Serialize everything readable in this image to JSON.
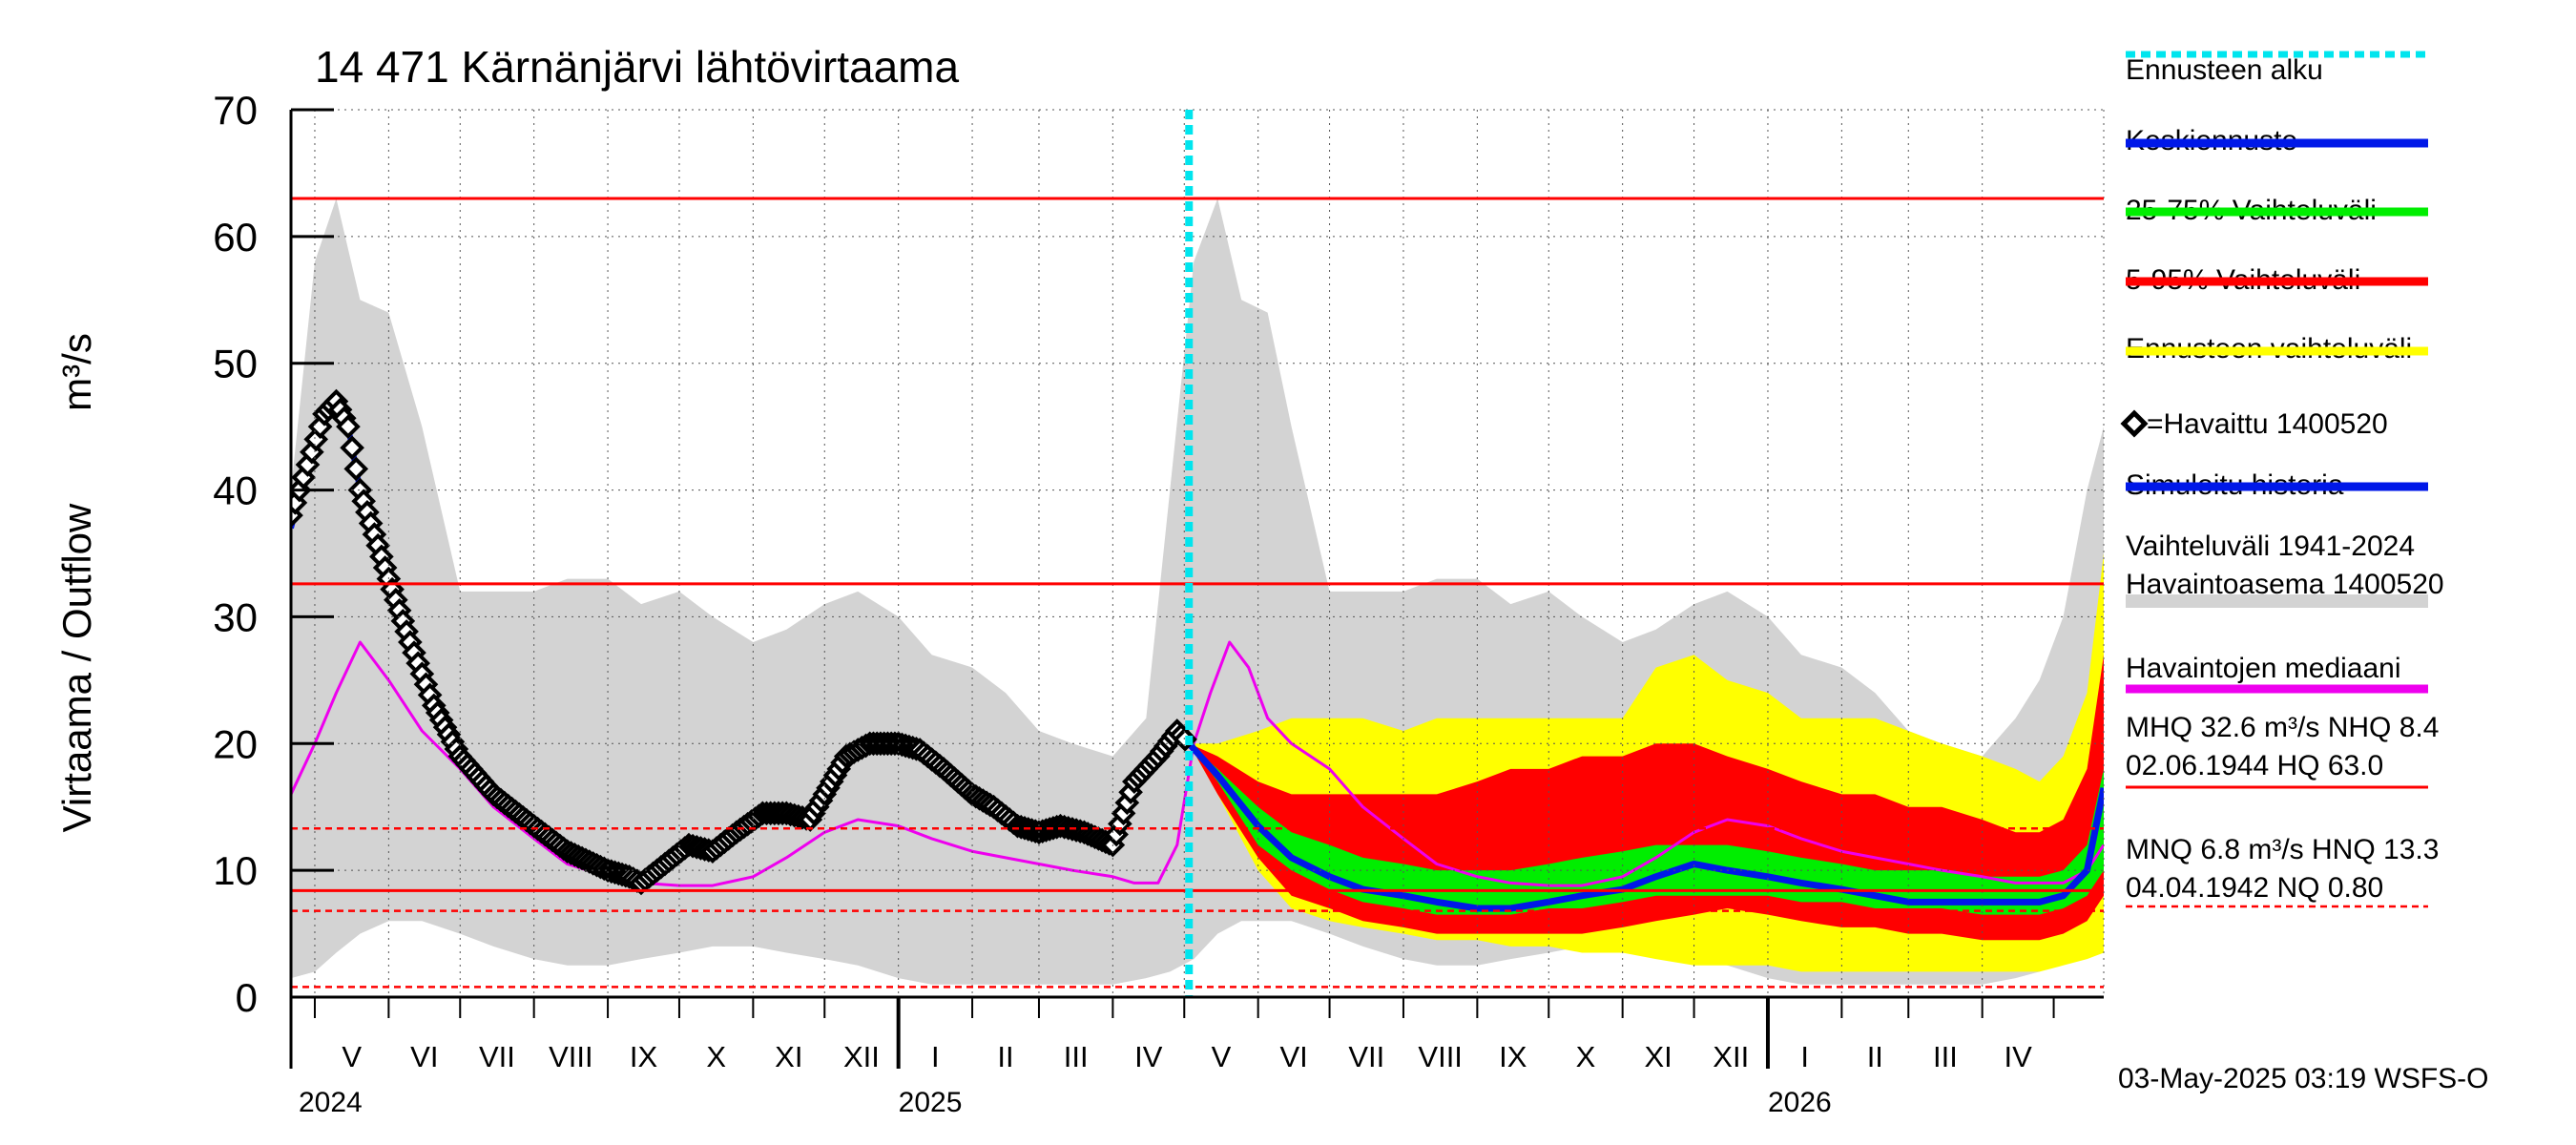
{
  "chart_data": {
    "type": "line",
    "title": "14 471 Kärnänjärvi lähtövirtaama",
    "ylabel": "Virtaama / Outflow",
    "yunit": "m³/s",
    "ylim": [
      0,
      70
    ],
    "yticks": [
      "0",
      "10",
      "20",
      "30",
      "40",
      "50",
      "60",
      "70"
    ],
    "xlim": [
      "2024-04-21",
      "2026-05-22"
    ],
    "forecast_start": "2025-05-03",
    "months": [
      {
        "label": "V",
        "start": "2024-05-01"
      },
      {
        "label": "VI",
        "start": "2024-06-01"
      },
      {
        "label": "VII",
        "start": "2024-07-01"
      },
      {
        "label": "VIII",
        "start": "2024-08-01"
      },
      {
        "label": "IX",
        "start": "2024-09-01"
      },
      {
        "label": "X",
        "start": "2024-10-01"
      },
      {
        "label": "XI",
        "start": "2024-11-01"
      },
      {
        "label": "XII",
        "start": "2024-12-01"
      },
      {
        "label": "I",
        "start": "2025-01-01"
      },
      {
        "label": "II",
        "start": "2025-02-01"
      },
      {
        "label": "III",
        "start": "2025-03-01"
      },
      {
        "label": "IV",
        "start": "2025-04-01"
      },
      {
        "label": "V",
        "start": "2025-05-01"
      },
      {
        "label": "VI",
        "start": "2025-06-01"
      },
      {
        "label": "VII",
        "start": "2025-07-01"
      },
      {
        "label": "VIII",
        "start": "2025-08-01"
      },
      {
        "label": "IX",
        "start": "2025-09-01"
      },
      {
        "label": "X",
        "start": "2025-10-01"
      },
      {
        "label": "XI",
        "start": "2025-11-01"
      },
      {
        "label": "XII",
        "start": "2025-12-01"
      },
      {
        "label": "I",
        "start": "2026-01-01"
      },
      {
        "label": "II",
        "start": "2026-02-01"
      },
      {
        "label": "III",
        "start": "2026-03-01"
      },
      {
        "label": "IV",
        "start": "2026-04-01"
      }
    ],
    "years": [
      {
        "label": "2024",
        "start": "2024-04-21"
      },
      {
        "label": "2025",
        "start": "2025-01-01"
      },
      {
        "label": "2026",
        "start": "2026-01-01"
      }
    ],
    "reference_lines": [
      {
        "name": "HQ",
        "value": 63.0,
        "style": "solid"
      },
      {
        "name": "MHQ",
        "value": 32.6,
        "style": "solid"
      },
      {
        "name": "HNQ",
        "value": 13.3,
        "style": "dashed"
      },
      {
        "name": "NHQ",
        "value": 8.4,
        "style": "solid"
      },
      {
        "name": "MNQ",
        "value": 6.8,
        "style": "dashed"
      },
      {
        "name": "NQ",
        "value": 0.8,
        "style": "dashed"
      }
    ],
    "historical_range": {
      "x": [
        "2024-04-21",
        "2024-05-01",
        "2024-05-10",
        "2024-05-20",
        "2024-06-01",
        "2024-06-15",
        "2024-07-01",
        "2024-07-15",
        "2024-08-01",
        "2024-08-15",
        "2024-09-01",
        "2024-09-15",
        "2024-10-01",
        "2024-10-15",
        "2024-11-01",
        "2024-11-15",
        "2024-12-01",
        "2024-12-15",
        "2025-01-01",
        "2025-01-15",
        "2025-02-01",
        "2025-02-15",
        "2025-03-01",
        "2025-03-15",
        "2025-04-01",
        "2025-04-15",
        "2025-04-25",
        "2025-05-05",
        "2025-05-15",
        "2025-05-25",
        "2025-06-05",
        "2025-06-15",
        "2025-07-01",
        "2025-07-15",
        "2025-08-01",
        "2025-08-15",
        "2025-09-01",
        "2025-09-15",
        "2025-10-01",
        "2025-10-15",
        "2025-11-01",
        "2025-11-15",
        "2025-12-01",
        "2025-12-15",
        "2026-01-01",
        "2026-01-15",
        "2026-02-01",
        "2026-02-15",
        "2026-03-01",
        "2026-03-15",
        "2026-04-01",
        "2026-04-15",
        "2026-04-25",
        "2026-05-05",
        "2026-05-15",
        "2026-05-22"
      ],
      "min": [
        1.5,
        2.0,
        3.5,
        5.0,
        6.0,
        6.0,
        5.0,
        4.0,
        3.0,
        2.5,
        2.5,
        3.0,
        3.5,
        4.0,
        4.0,
        3.5,
        3.0,
        2.5,
        1.5,
        1.0,
        1.0,
        1.0,
        1.0,
        1.0,
        1.0,
        1.5,
        2.0,
        3.0,
        5.0,
        6.0,
        6.0,
        6.0,
        5.0,
        4.0,
        3.0,
        2.5,
        2.5,
        3.0,
        3.5,
        4.0,
        4.0,
        3.5,
        3.0,
        2.5,
        1.5,
        1.0,
        1.0,
        1.0,
        1.0,
        1.0,
        1.0,
        1.5,
        2.0,
        3.0,
        3.5,
        4.0
      ],
      "max": [
        40,
        58,
        63,
        55,
        54,
        45,
        32,
        32,
        32,
        33,
        33,
        31,
        32,
        30,
        28,
        29,
        31,
        32,
        30,
        27,
        26,
        24,
        21,
        20,
        19,
        22,
        40,
        58,
        63,
        55,
        54,
        45,
        32,
        32,
        32,
        33,
        33,
        31,
        32,
        30,
        28,
        29,
        31,
        32,
        30,
        27,
        26,
        24,
        21,
        20,
        19,
        22,
        25,
        30,
        40,
        45
      ]
    },
    "observed_median": {
      "x": [
        "2024-04-21",
        "2024-05-01",
        "2024-05-10",
        "2024-05-20",
        "2024-06-01",
        "2024-06-15",
        "2024-07-01",
        "2024-07-15",
        "2024-08-01",
        "2024-08-15",
        "2024-09-01",
        "2024-09-15",
        "2024-10-01",
        "2024-10-15",
        "2024-11-01",
        "2024-11-15",
        "2024-12-01",
        "2024-12-15",
        "2025-01-01",
        "2025-01-15",
        "2025-02-01",
        "2025-02-15",
        "2025-03-01",
        "2025-03-15",
        "2025-04-01",
        "2025-04-10",
        "2025-04-20",
        "2025-04-28",
        "2025-05-05",
        "2025-05-12",
        "2025-05-20",
        "2025-05-28",
        "2025-06-05",
        "2025-06-15",
        "2025-07-01",
        "2025-07-15",
        "2025-08-01",
        "2025-08-15",
        "2025-09-01",
        "2025-09-15",
        "2025-10-01",
        "2025-10-15",
        "2025-11-01",
        "2025-11-15",
        "2025-12-01",
        "2025-12-15",
        "2026-01-01",
        "2026-01-15",
        "2026-02-01",
        "2026-02-15",
        "2026-03-01",
        "2026-03-15",
        "2026-04-01",
        "2026-04-15",
        "2026-04-25",
        "2026-05-05",
        "2026-05-15",
        "2026-05-22"
      ],
      "values": [
        16,
        20,
        24,
        28,
        25,
        21,
        18,
        15,
        12.5,
        10.5,
        9.5,
        9,
        8.8,
        8.8,
        9.5,
        11,
        13,
        14,
        13.5,
        12.5,
        11.5,
        11,
        10.5,
        10,
        9.5,
        9,
        9,
        12,
        20,
        24,
        28,
        26,
        22,
        20,
        18,
        15,
        12.5,
        10.5,
        9.5,
        9,
        8.8,
        8.8,
        9.5,
        11,
        13,
        14,
        13.5,
        12.5,
        11.5,
        11,
        10.5,
        10,
        9.5,
        9,
        9,
        9,
        10,
        12
      ]
    },
    "forecast": {
      "x": [
        "2025-05-03",
        "2025-05-15",
        "2025-06-01",
        "2025-06-15",
        "2025-07-01",
        "2025-07-15",
        "2025-08-01",
        "2025-08-15",
        "2025-09-01",
        "2025-09-15",
        "2025-10-01",
        "2025-10-15",
        "2025-11-01",
        "2025-11-15",
        "2025-12-01",
        "2025-12-15",
        "2026-01-01",
        "2026-01-15",
        "2026-02-01",
        "2026-02-15",
        "2026-03-01",
        "2026-03-15",
        "2026-04-01",
        "2026-04-15",
        "2026-04-25",
        "2026-05-05",
        "2026-05-15",
        "2026-05-22"
      ],
      "env_min": [
        20,
        16,
        10,
        7,
        6,
        5.5,
        5,
        4.5,
        4.5,
        4,
        4,
        3.5,
        3.5,
        3,
        2.5,
        2.5,
        2.5,
        2,
        2,
        2,
        2,
        2,
        2,
        2,
        2,
        2.5,
        3,
        3.5
      ],
      "env_max": [
        20,
        20,
        21,
        22,
        22,
        22,
        21,
        22,
        22,
        22,
        22,
        22,
        22,
        26,
        27,
        25,
        24,
        22,
        22,
        22,
        21,
        20,
        19,
        18,
        17,
        19,
        24,
        35
      ],
      "p5": [
        20,
        16,
        11,
        8,
        7,
        6,
        5.5,
        5,
        5,
        5,
        5,
        5,
        5.5,
        6,
        6.5,
        7,
        6.5,
        6,
        5.5,
        5.5,
        5,
        5,
        4.5,
        4.5,
        4.5,
        5,
        6,
        8
      ],
      "p95": [
        20,
        19,
        17,
        16,
        16,
        16,
        16,
        16,
        17,
        18,
        18,
        19,
        19,
        20,
        20,
        19,
        18,
        17,
        16,
        16,
        15,
        15,
        14,
        13,
        13,
        14,
        18,
        27
      ],
      "p25": [
        20,
        17,
        12,
        10,
        8.5,
        7.5,
        7,
        6.5,
        6.5,
        6.5,
        7,
        7,
        7.5,
        8,
        8,
        8,
        8,
        7.5,
        7.5,
        7,
        7,
        7,
        6.5,
        6.5,
        6.5,
        7,
        8,
        10
      ],
      "p75": [
        20,
        18,
        15,
        13,
        12,
        11,
        10.5,
        10,
        10,
        10,
        10.5,
        11,
        11.5,
        12,
        12,
        12,
        11.5,
        11,
        10.5,
        10,
        10,
        10,
        9.5,
        9.5,
        9.5,
        10,
        12,
        18
      ],
      "mean": [
        20,
        17.5,
        13.5,
        11,
        9.5,
        8.5,
        8,
        7.5,
        7,
        7,
        7.5,
        8,
        8.5,
        9.5,
        10.5,
        10,
        9.5,
        9,
        8.5,
        8,
        7.5,
        7.5,
        7.5,
        7.5,
        7.5,
        8,
        10,
        16.5
      ]
    },
    "simulated_history": {
      "x": [
        "2024-04-21",
        "2024-04-28",
        "2024-05-05",
        "2024-05-10",
        "2024-05-15",
        "2024-05-20",
        "2024-06-01",
        "2024-06-10",
        "2024-06-20",
        "2024-07-01",
        "2024-07-15",
        "2024-08-01",
        "2024-08-15",
        "2024-09-01",
        "2024-09-10",
        "2024-09-15",
        "2024-09-25",
        "2024-10-05",
        "2024-10-15",
        "2024-10-25",
        "2024-11-05",
        "2024-11-15",
        "2024-11-25",
        "2024-12-01",
        "2024-12-10",
        "2024-12-20",
        "2025-01-01",
        "2025-01-10",
        "2025-01-20",
        "2025-02-01",
        "2025-02-10",
        "2025-02-20",
        "2025-03-01",
        "2025-03-10",
        "2025-03-20",
        "2025-04-01",
        "2025-04-10",
        "2025-04-20",
        "2025-04-28",
        "2025-05-03"
      ],
      "values": [
        37,
        42,
        46,
        47,
        45,
        40,
        33,
        28,
        23,
        19,
        16,
        13.5,
        11.5,
        10,
        9.5,
        9.5,
        10.5,
        12,
        11.5,
        13,
        14.5,
        14.5,
        14,
        16,
        19,
        20.5,
        20.5,
        19.5,
        18,
        16.5,
        15,
        13.5,
        13,
        13.5,
        13,
        12,
        17,
        19,
        21,
        20
      ]
    },
    "observed": {
      "x": [
        "2024-04-21",
        "2024-04-28",
        "2024-05-05",
        "2024-05-10",
        "2024-05-15",
        "2024-05-20",
        "2024-06-01",
        "2024-06-10",
        "2024-06-20",
        "2024-07-01",
        "2024-07-15",
        "2024-08-01",
        "2024-08-15",
        "2024-09-01",
        "2024-09-10",
        "2024-09-15",
        "2024-09-25",
        "2024-10-05",
        "2024-10-15",
        "2024-10-25",
        "2024-11-05",
        "2024-11-15",
        "2024-11-25",
        "2024-12-01",
        "2024-12-10",
        "2024-12-20",
        "2025-01-01",
        "2025-01-10",
        "2025-01-20",
        "2025-02-01",
        "2025-02-10",
        "2025-02-20",
        "2025-03-01",
        "2025-03-10",
        "2025-03-20",
        "2025-04-01",
        "2025-04-10",
        "2025-04-20",
        "2025-04-28",
        "2025-05-03"
      ],
      "values": [
        38,
        42,
        46,
        47,
        45,
        40,
        33,
        28,
        23,
        19,
        16,
        13.5,
        11.5,
        10,
        9.5,
        9,
        10.5,
        12,
        11.5,
        13,
        14.5,
        14.5,
        14,
        16,
        19,
        20,
        20,
        19.5,
        18,
        16,
        15,
        13.5,
        13,
        13.5,
        13,
        12,
        17,
        19,
        21,
        20
      ]
    }
  },
  "legend": [
    {
      "label": "Ennusteen alku",
      "color": "#00e5ee",
      "style": "dotted"
    },
    {
      "label": "Keskiennuste",
      "color": "#0018e8",
      "style": "solid"
    },
    {
      "label": "25-75% Vaihteluväli",
      "color": "#00ee00",
      "style": "solid"
    },
    {
      "label": "5-95% Vaihteluväli",
      "color": "#ff0000",
      "style": "solid"
    },
    {
      "label": "Ennusteen vaihteluväli",
      "color": "#ffff00",
      "style": "solid"
    },
    {
      "label": "=Havaittu 1400520",
      "color": "#000000",
      "style": "marker"
    },
    {
      "label": "Simuloitu historia",
      "color": "#0018e8",
      "style": "solid"
    },
    {
      "label": "Vaihteluväli 1941-2024",
      "label2": " Havaintoasema 1400520",
      "color": "#d3d3d3",
      "style": "thick"
    },
    {
      "label": "Havaintojen mediaani",
      "color": "#ee00ee",
      "style": "solid"
    },
    {
      "label": "MHQ 32.6 m³/s NHQ  8.4",
      "label2": "02.06.1944 HQ 63.0",
      "color": "#ff0000",
      "style": "solid"
    },
    {
      "label": "MNQ  6.8 m³/s HNQ 13.3",
      "label2": "04.04.1942 NQ 0.80",
      "color": "#ff0000",
      "style": "dashed"
    }
  ],
  "footer": "03-May-2025 03:19 WSFS-O",
  "colors": {
    "historical": "#d3d3d3",
    "forecast_env": "#ffff00",
    "p5_95": "#ff0000",
    "p25_75": "#00ee00",
    "mean": "#0018e8",
    "median": "#ee00ee",
    "observed": "#000000",
    "simulated": "#0018e8",
    "forecast_start": "#00e5ee",
    "reference": "#ff0000"
  }
}
